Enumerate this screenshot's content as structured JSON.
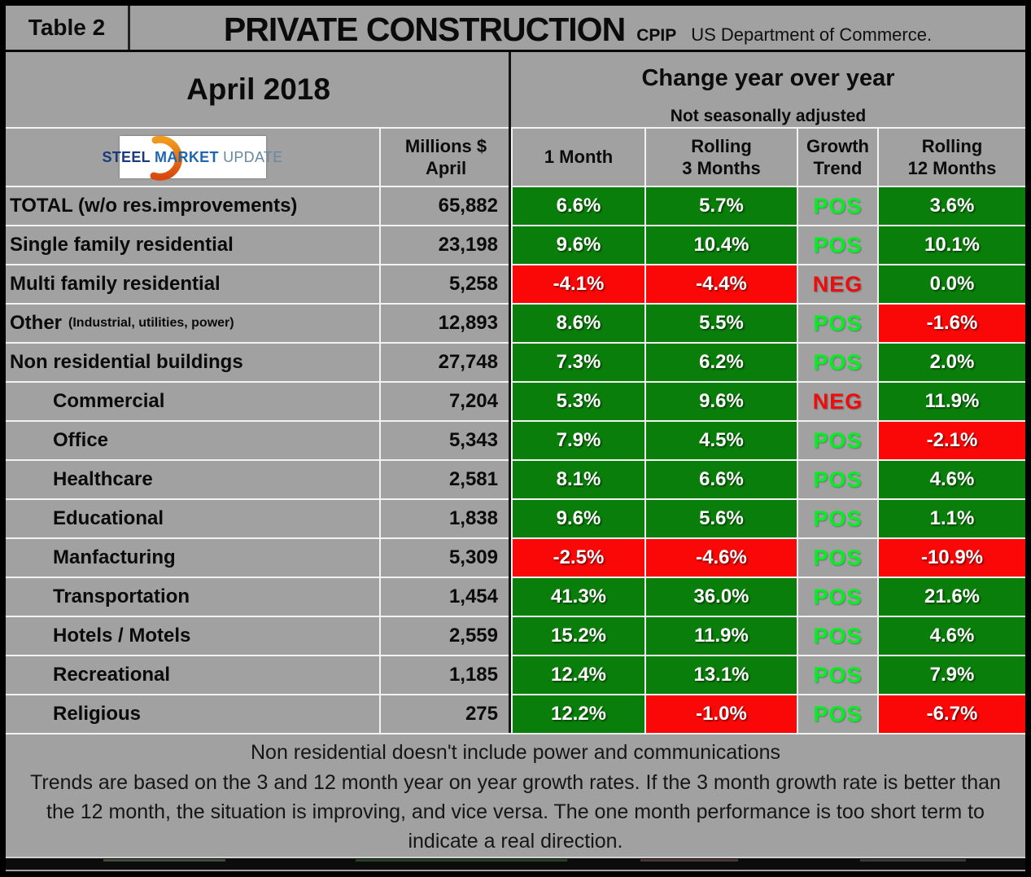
{
  "header": {
    "table_label": "Table 2",
    "title": "PRIVATE CONSTRUCTION",
    "subtitle": "CPIP",
    "source": "US Department of Commerce."
  },
  "period": {
    "month_label": "April 2018",
    "change_title": "Change year over year",
    "change_subtitle": "Not seasonally adjusted"
  },
  "logo": {
    "word1": "STEEL",
    "word2": "MARKET",
    "word3": "UPDATE",
    "swoosh_color_top": "#f29a1d",
    "swoosh_color_bottom": "#d9480f"
  },
  "columns": {
    "millions_line1": "Millions $",
    "millions_line2": "April",
    "one_month": "1 Month",
    "rolling3_line1": "Rolling",
    "rolling3_line2": "3 Months",
    "growth_line1": "Growth",
    "growth_line2": "Trend",
    "rolling12_line1": "Rolling",
    "rolling12_line2": "12 Months"
  },
  "rows": [
    {
      "label": "TOTAL (w/o res.improvements)",
      "note": "",
      "indent": false,
      "millions": "65,882",
      "m1": "6.6%",
      "m1c": "green",
      "r3": "5.7%",
      "r3c": "green",
      "trend": "POS",
      "trendc": "pos",
      "r12": "3.6%",
      "r12c": "green"
    },
    {
      "label": "Single family residential",
      "note": "",
      "indent": false,
      "millions": "23,198",
      "m1": "9.6%",
      "m1c": "green",
      "r3": "10.4%",
      "r3c": "green",
      "trend": "POS",
      "trendc": "pos",
      "r12": "10.1%",
      "r12c": "green"
    },
    {
      "label": "Multi family residential",
      "note": "",
      "indent": false,
      "millions": "5,258",
      "m1": "-4.1%",
      "m1c": "red",
      "r3": "-4.4%",
      "r3c": "red",
      "trend": "NEG",
      "trendc": "neg",
      "r12": "0.0%",
      "r12c": "green"
    },
    {
      "label": "Other",
      "note": "(Industrial, utilities, power)",
      "indent": false,
      "millions": "12,893",
      "m1": "8.6%",
      "m1c": "green",
      "r3": "5.5%",
      "r3c": "green",
      "trend": "POS",
      "trendc": "pos",
      "r12": "-1.6%",
      "r12c": "red"
    },
    {
      "label": "Non residential buildings",
      "note": "",
      "indent": false,
      "millions": "27,748",
      "m1": "7.3%",
      "m1c": "green",
      "r3": "6.2%",
      "r3c": "green",
      "trend": "POS",
      "trendc": "pos",
      "r12": "2.0%",
      "r12c": "green"
    },
    {
      "label": "Commercial",
      "note": "",
      "indent": true,
      "millions": "7,204",
      "m1": "5.3%",
      "m1c": "green",
      "r3": "9.6%",
      "r3c": "green",
      "trend": "NEG",
      "trendc": "neg",
      "r12": "11.9%",
      "r12c": "green"
    },
    {
      "label": "Office",
      "note": "",
      "indent": true,
      "millions": "5,343",
      "m1": "7.9%",
      "m1c": "green",
      "r3": "4.5%",
      "r3c": "green",
      "trend": "POS",
      "trendc": "pos",
      "r12": "-2.1%",
      "r12c": "red"
    },
    {
      "label": "Healthcare",
      "note": "",
      "indent": true,
      "millions": "2,581",
      "m1": "8.1%",
      "m1c": "green",
      "r3": "6.6%",
      "r3c": "green",
      "trend": "POS",
      "trendc": "pos",
      "r12": "4.6%",
      "r12c": "green"
    },
    {
      "label": "Educational",
      "note": "",
      "indent": true,
      "millions": "1,838",
      "m1": "9.6%",
      "m1c": "green",
      "r3": "5.6%",
      "r3c": "green",
      "trend": "POS",
      "trendc": "pos",
      "r12": "1.1%",
      "r12c": "green"
    },
    {
      "label": "Manfacturing",
      "note": "",
      "indent": true,
      "millions": "5,309",
      "m1": "-2.5%",
      "m1c": "red",
      "r3": "-4.6%",
      "r3c": "red",
      "trend": "POS",
      "trendc": "pos",
      "r12": "-10.9%",
      "r12c": "red"
    },
    {
      "label": "Transportation",
      "note": "",
      "indent": true,
      "millions": "1,454",
      "m1": "41.3%",
      "m1c": "green",
      "r3": "36.0%",
      "r3c": "green",
      "trend": "POS",
      "trendc": "pos",
      "r12": "21.6%",
      "r12c": "green"
    },
    {
      "label": "Hotels / Motels",
      "note": "",
      "indent": true,
      "millions": "2,559",
      "m1": "15.2%",
      "m1c": "green",
      "r3": "11.9%",
      "r3c": "green",
      "trend": "POS",
      "trendc": "pos",
      "r12": "4.6%",
      "r12c": "green"
    },
    {
      "label": "Recreational",
      "note": "",
      "indent": true,
      "millions": "1,185",
      "m1": "12.4%",
      "m1c": "green",
      "r3": "13.1%",
      "r3c": "green",
      "trend": "POS",
      "trendc": "pos",
      "r12": "7.9%",
      "r12c": "green"
    },
    {
      "label": "Religious",
      "note": "",
      "indent": true,
      "millions": "275",
      "m1": "12.2%",
      "m1c": "green",
      "r3": "-1.0%",
      "r3c": "red",
      "trend": "POS",
      "trendc": "pos",
      "r12": "-6.7%",
      "r12c": "red"
    }
  ],
  "footer": {
    "note": "Non residential doesn't include power and communications",
    "trend_explanation": "Trends are based on the 3 and 12 month year on year growth rates. If the 3 month growth rate is better than the 12 month, the situation is improving, and vice versa. The one month performance is too short term to indicate a real direction."
  },
  "colors": {
    "background_gray": "#a1a1a1",
    "positive_cell": "#0a7e0a",
    "negative_cell": "#fa0808",
    "pos_text": "#00f022",
    "neg_text": "#ee0c0c"
  },
  "chart_data": {
    "type": "table",
    "title": "PRIVATE CONSTRUCTION (CPIP, US Department of Commerce)",
    "period": "April 2018",
    "note": "Change year over year, Not seasonally adjusted",
    "columns": [
      "Category",
      "Millions $ April",
      "1 Month",
      "Rolling 3 Months",
      "Growth Trend",
      "Rolling 12 Months"
    ],
    "rows": [
      [
        "TOTAL (w/o res.improvements)",
        65882,
        6.6,
        5.7,
        "POS",
        3.6
      ],
      [
        "Single family residential",
        23198,
        9.6,
        10.4,
        "POS",
        10.1
      ],
      [
        "Multi family residential",
        5258,
        -4.1,
        -4.4,
        "NEG",
        0.0
      ],
      [
        "Other (Industrial, utilities, power)",
        12893,
        8.6,
        5.5,
        "POS",
        -1.6
      ],
      [
        "Non residential buildings",
        27748,
        7.3,
        6.2,
        "POS",
        2.0
      ],
      [
        "Commercial",
        7204,
        5.3,
        9.6,
        "NEG",
        11.9
      ],
      [
        "Office",
        5343,
        7.9,
        4.5,
        "POS",
        -2.1
      ],
      [
        "Healthcare",
        2581,
        8.1,
        6.6,
        "POS",
        4.6
      ],
      [
        "Educational",
        1838,
        9.6,
        5.6,
        "POS",
        1.1
      ],
      [
        "Manfacturing",
        5309,
        -2.5,
        -4.6,
        "POS",
        -10.9
      ],
      [
        "Transportation",
        1454,
        41.3,
        36.0,
        "POS",
        21.6
      ],
      [
        "Hotels / Motels",
        2559,
        15.2,
        11.9,
        "POS",
        4.6
      ],
      [
        "Recreational",
        1185,
        12.4,
        13.1,
        "POS",
        7.9
      ],
      [
        "Religious",
        275,
        12.2,
        -1.0,
        "POS",
        -6.7
      ]
    ]
  }
}
